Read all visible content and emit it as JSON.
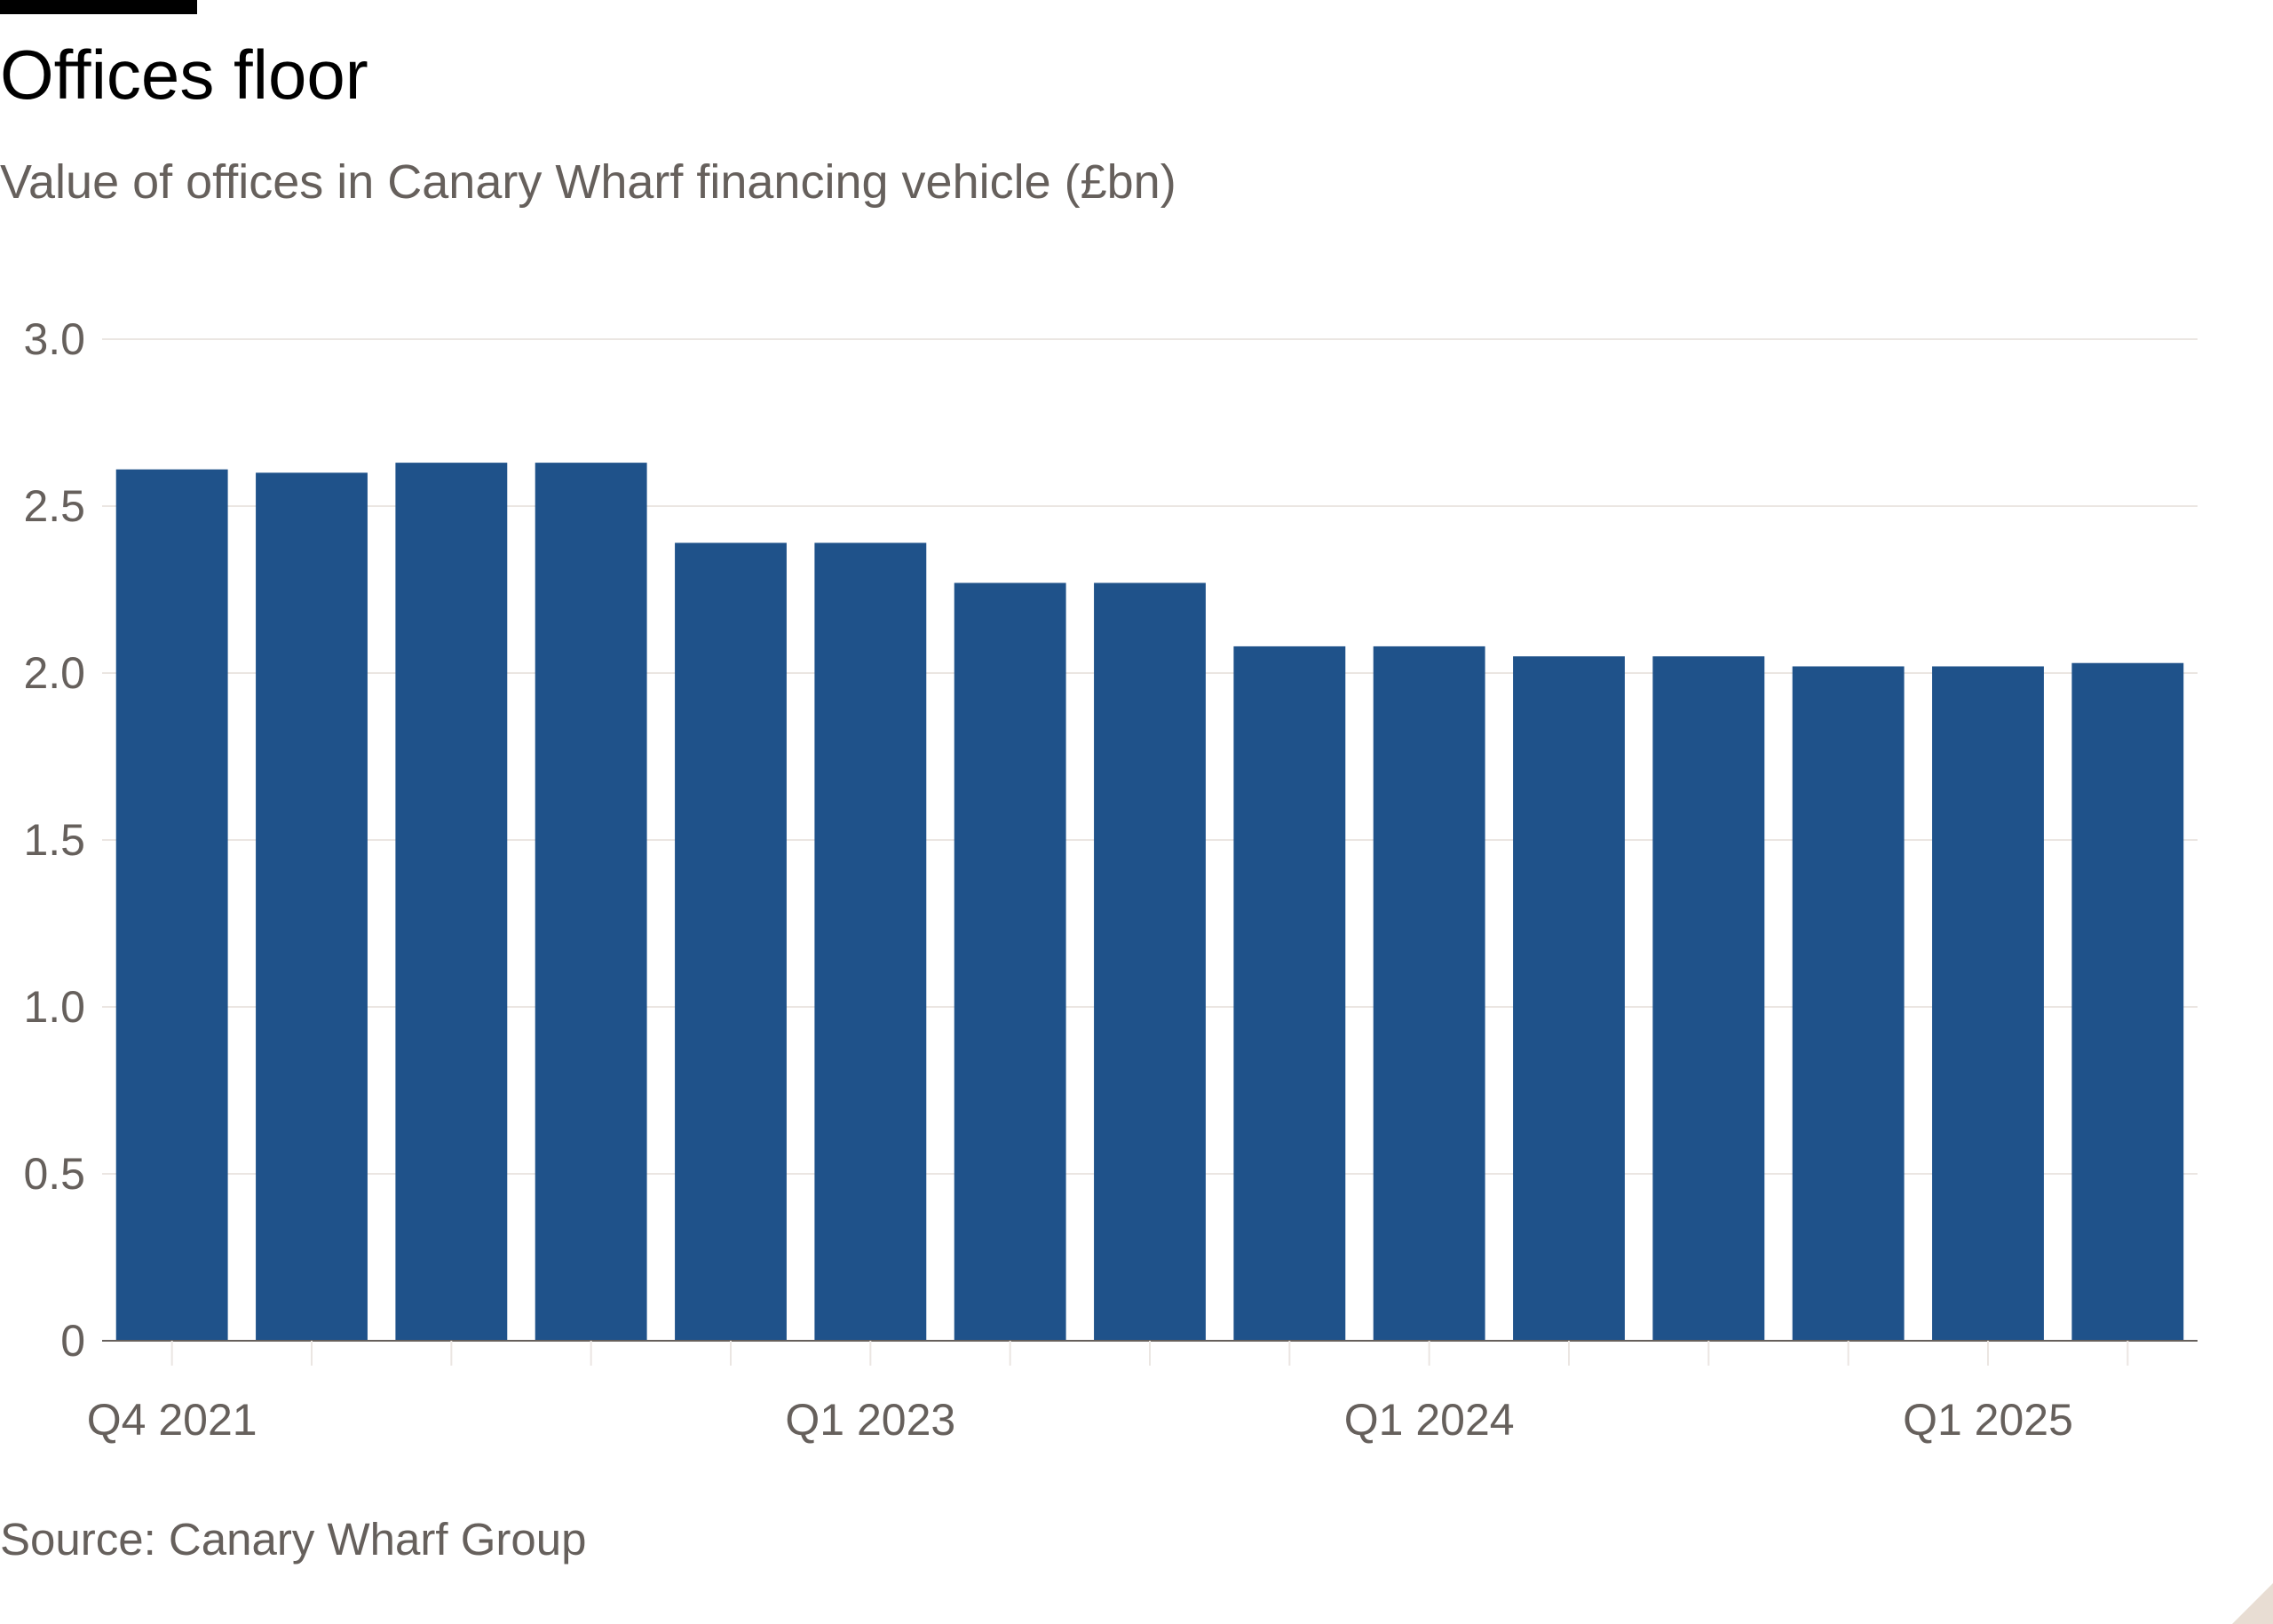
{
  "chart_data": {
    "type": "bar",
    "title": "Offices floor",
    "subtitle": "Value of offices in Canary Wharf financing vehicle (£bn)",
    "source": "Source: Canary Wharf Group",
    "categories": [
      "Q4 2021",
      "Q1 2022",
      "Q2 2022",
      "Q3 2022",
      "Q4 2022",
      "Q1 2023",
      "Q2 2023",
      "Q3 2023",
      "Q4 2023",
      "Q1 2024",
      "Q2 2024",
      "Q3 2024",
      "Q4 2024",
      "Q1 2025",
      "Q2 2025"
    ],
    "values": [
      2.61,
      2.6,
      2.63,
      2.63,
      2.39,
      2.39,
      2.27,
      2.27,
      2.08,
      2.08,
      2.05,
      2.05,
      2.02,
      2.02,
      2.03
    ],
    "x_tick_labels": [
      {
        "category": "Q4 2021",
        "label": "Q4 2021"
      },
      {
        "category": "Q1 2023",
        "label": "Q1 2023"
      },
      {
        "category": "Q1 2024",
        "label": "Q1 2024"
      },
      {
        "category": "Q1 2025",
        "label": "Q1 2025"
      }
    ],
    "y_ticks": [
      0,
      0.5,
      1.0,
      1.5,
      2.0,
      2.5,
      3.0
    ],
    "y_tick_labels": [
      "0",
      "0.5",
      "1.0",
      "1.5",
      "2.0",
      "2.5",
      "3.0"
    ],
    "ylim": [
      0,
      3.0
    ],
    "xlabel": "",
    "ylabel": "",
    "grid": true,
    "legend": "none",
    "colors": {
      "bar": "#1f528a",
      "grid": "#ebe6e2",
      "axis": "#66605c",
      "tick_text": "#66605c",
      "title": "#000000",
      "subtitle": "#66605c"
    }
  }
}
